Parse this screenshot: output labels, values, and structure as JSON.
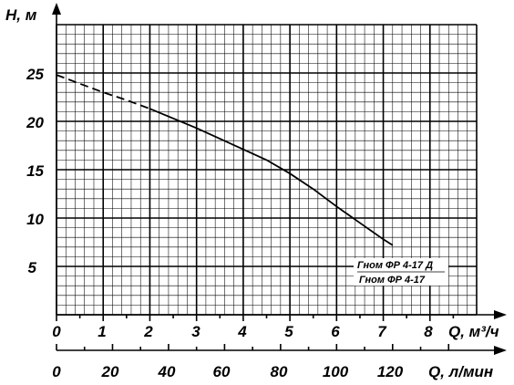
{
  "chart_data": {
    "type": "line",
    "ylabel": "H, м",
    "xlabel_primary": "Q, м³/ч",
    "xlabel_secondary": "Q, л/мин",
    "y_ticks": [
      "5",
      "10",
      "15",
      "20",
      "25"
    ],
    "x_ticks_primary": [
      "0",
      "1",
      "2",
      "3",
      "4",
      "5",
      "6",
      "7",
      "8"
    ],
    "x_ticks_secondary": [
      "0",
      "20",
      "40",
      "60",
      "80",
      "100",
      "120"
    ],
    "xlim": [
      0,
      9
    ],
    "ylim": [
      0,
      30
    ],
    "grid": true,
    "legend": [
      "Гном ФР 4-17 Д",
      "Гном ФР 4-17"
    ],
    "legend_position": "bottom-right",
    "series": [
      {
        "style": "dashed",
        "x": [
          0,
          0.5,
          1,
          1.5,
          2
        ],
        "y": [
          24.8,
          23.9,
          23.0,
          22.2,
          21.3
        ]
      },
      {
        "style": "solid",
        "x": [
          2,
          2.5,
          3,
          3.5,
          4,
          4.5,
          5,
          5.5,
          6,
          6.5,
          7,
          7.2
        ],
        "y": [
          21.3,
          20.3,
          19.3,
          18.2,
          17.1,
          16.0,
          14.6,
          13.0,
          11.2,
          9.5,
          7.8,
          7.2
        ]
      }
    ]
  }
}
